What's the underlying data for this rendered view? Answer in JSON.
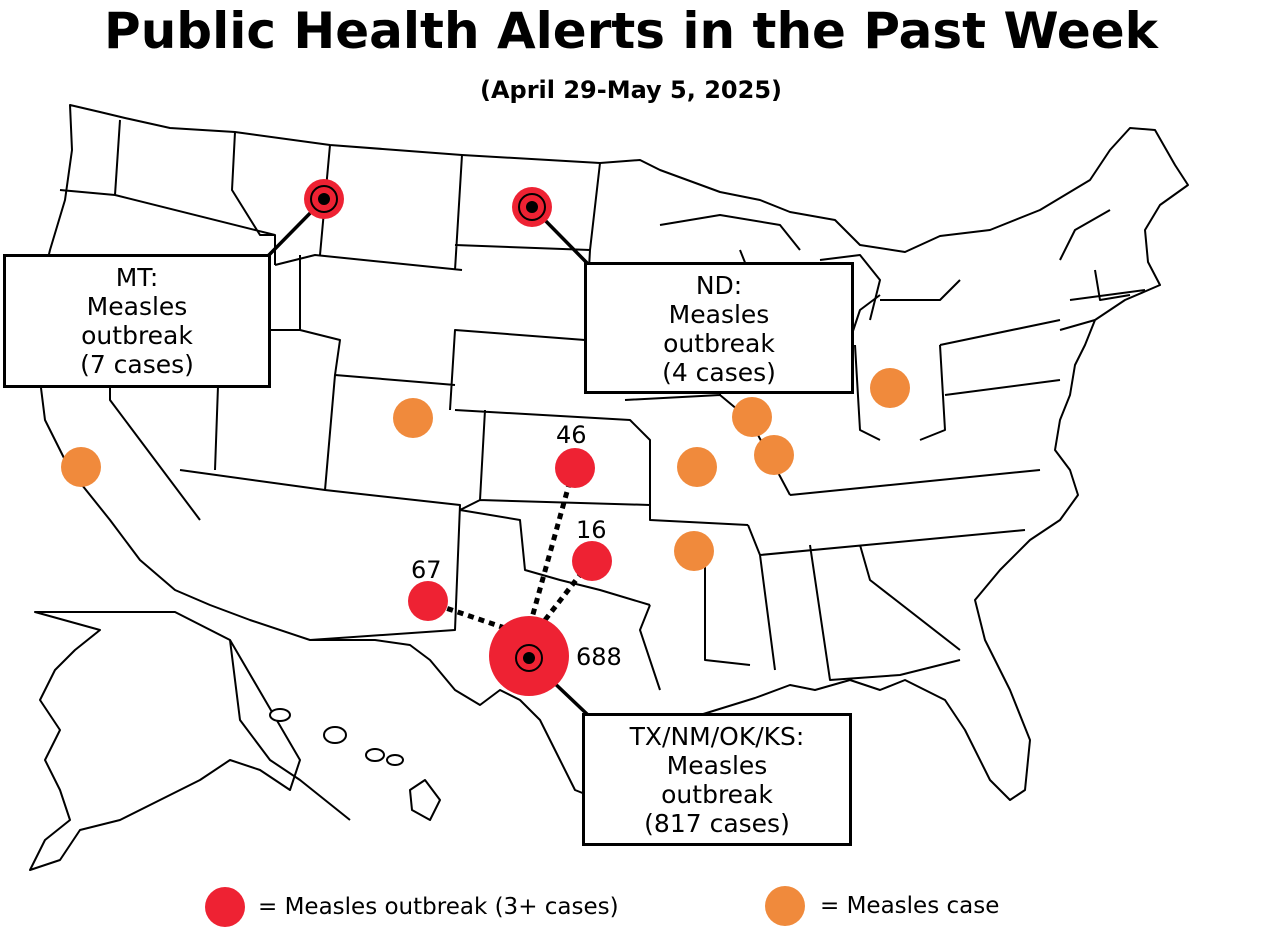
{
  "title": "Public Health Alerts in the Past Week",
  "subtitle": "(April 29-May 5, 2025)",
  "colors": {
    "outbreak": "#EE2233",
    "case": "#F08A3C",
    "outline": "#000000",
    "background": "#ffffff"
  },
  "callouts": {
    "mt": {
      "state": "MT:",
      "line1": "Measles",
      "line2": "outbreak",
      "cases": "(7 cases)"
    },
    "nd": {
      "state": "ND:",
      "line1": "Measles",
      "line2": "outbreak",
      "cases": "(4 cases)"
    },
    "tx": {
      "state": "TX/NM/OK/KS:",
      "line1": "Measles",
      "line2": "outbreak",
      "cases": "(817 cases)"
    }
  },
  "counts": {
    "kansas": "46",
    "oklahoma": "16",
    "new_mexico": "67",
    "texas": "688"
  },
  "legend": {
    "outbreak_label": "= Measles outbreak (3+ cases)",
    "case_label": "= Measles case"
  },
  "markers": {
    "outbreak_states": [
      "MT",
      "ND",
      "TX",
      "NM",
      "OK",
      "KS"
    ],
    "case_states": [
      "CA",
      "CO",
      "MO",
      "IL",
      "IL",
      "AR",
      "OH"
    ]
  }
}
